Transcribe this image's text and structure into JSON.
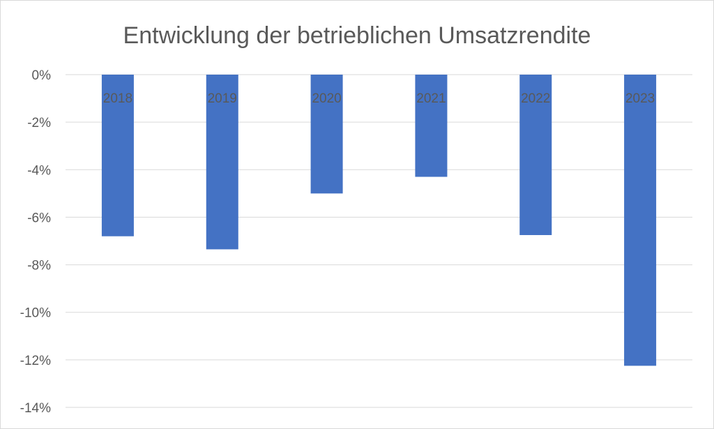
{
  "chart_data": {
    "type": "bar",
    "title": "Entwicklung der betrieblichen Umsatzrendite",
    "xlabel": "",
    "ylabel": "",
    "categories": [
      "2018",
      "2019",
      "2020",
      "2021",
      "2022",
      "2023"
    ],
    "series": [
      {
        "values": [
          -6.8,
          -7.35,
          -5.0,
          -4.3,
          -6.75,
          -12.25
        ],
        "color": "#4472c4"
      }
    ],
    "ylim": [
      -14,
      0
    ],
    "yticks": [
      0,
      -2,
      -4,
      -6,
      -8,
      -10,
      -12,
      -14
    ],
    "ytick_labels": [
      "0%",
      "-2%",
      "-4%",
      "-6%",
      "-8%",
      "-10%",
      "-12%",
      "-14%"
    ],
    "grid": true,
    "legend": "none"
  }
}
